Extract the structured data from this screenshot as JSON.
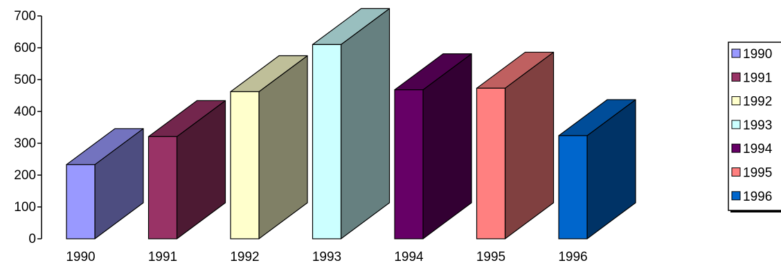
{
  "chart_data": {
    "type": "bar",
    "style": "3d",
    "categories": [
      "1990",
      "1991",
      "1992",
      "1993",
      "1994",
      "1995",
      "1996"
    ],
    "values": [
      233,
      321,
      462,
      610,
      468,
      473,
      324
    ],
    "colors": [
      "#9999FF",
      "#993366",
      "#FFFFCC",
      "#CCFFFF",
      "#660066",
      "#FF8080",
      "#0066CC"
    ],
    "ylim": [
      0,
      700
    ],
    "yticks": [
      0,
      100,
      200,
      300,
      400,
      500,
      600,
      700
    ],
    "grid": false,
    "legend": {
      "position": "right",
      "entries": [
        "1990",
        "1991",
        "1992",
        "1993",
        "1994",
        "1995",
        "1996"
      ]
    }
  }
}
